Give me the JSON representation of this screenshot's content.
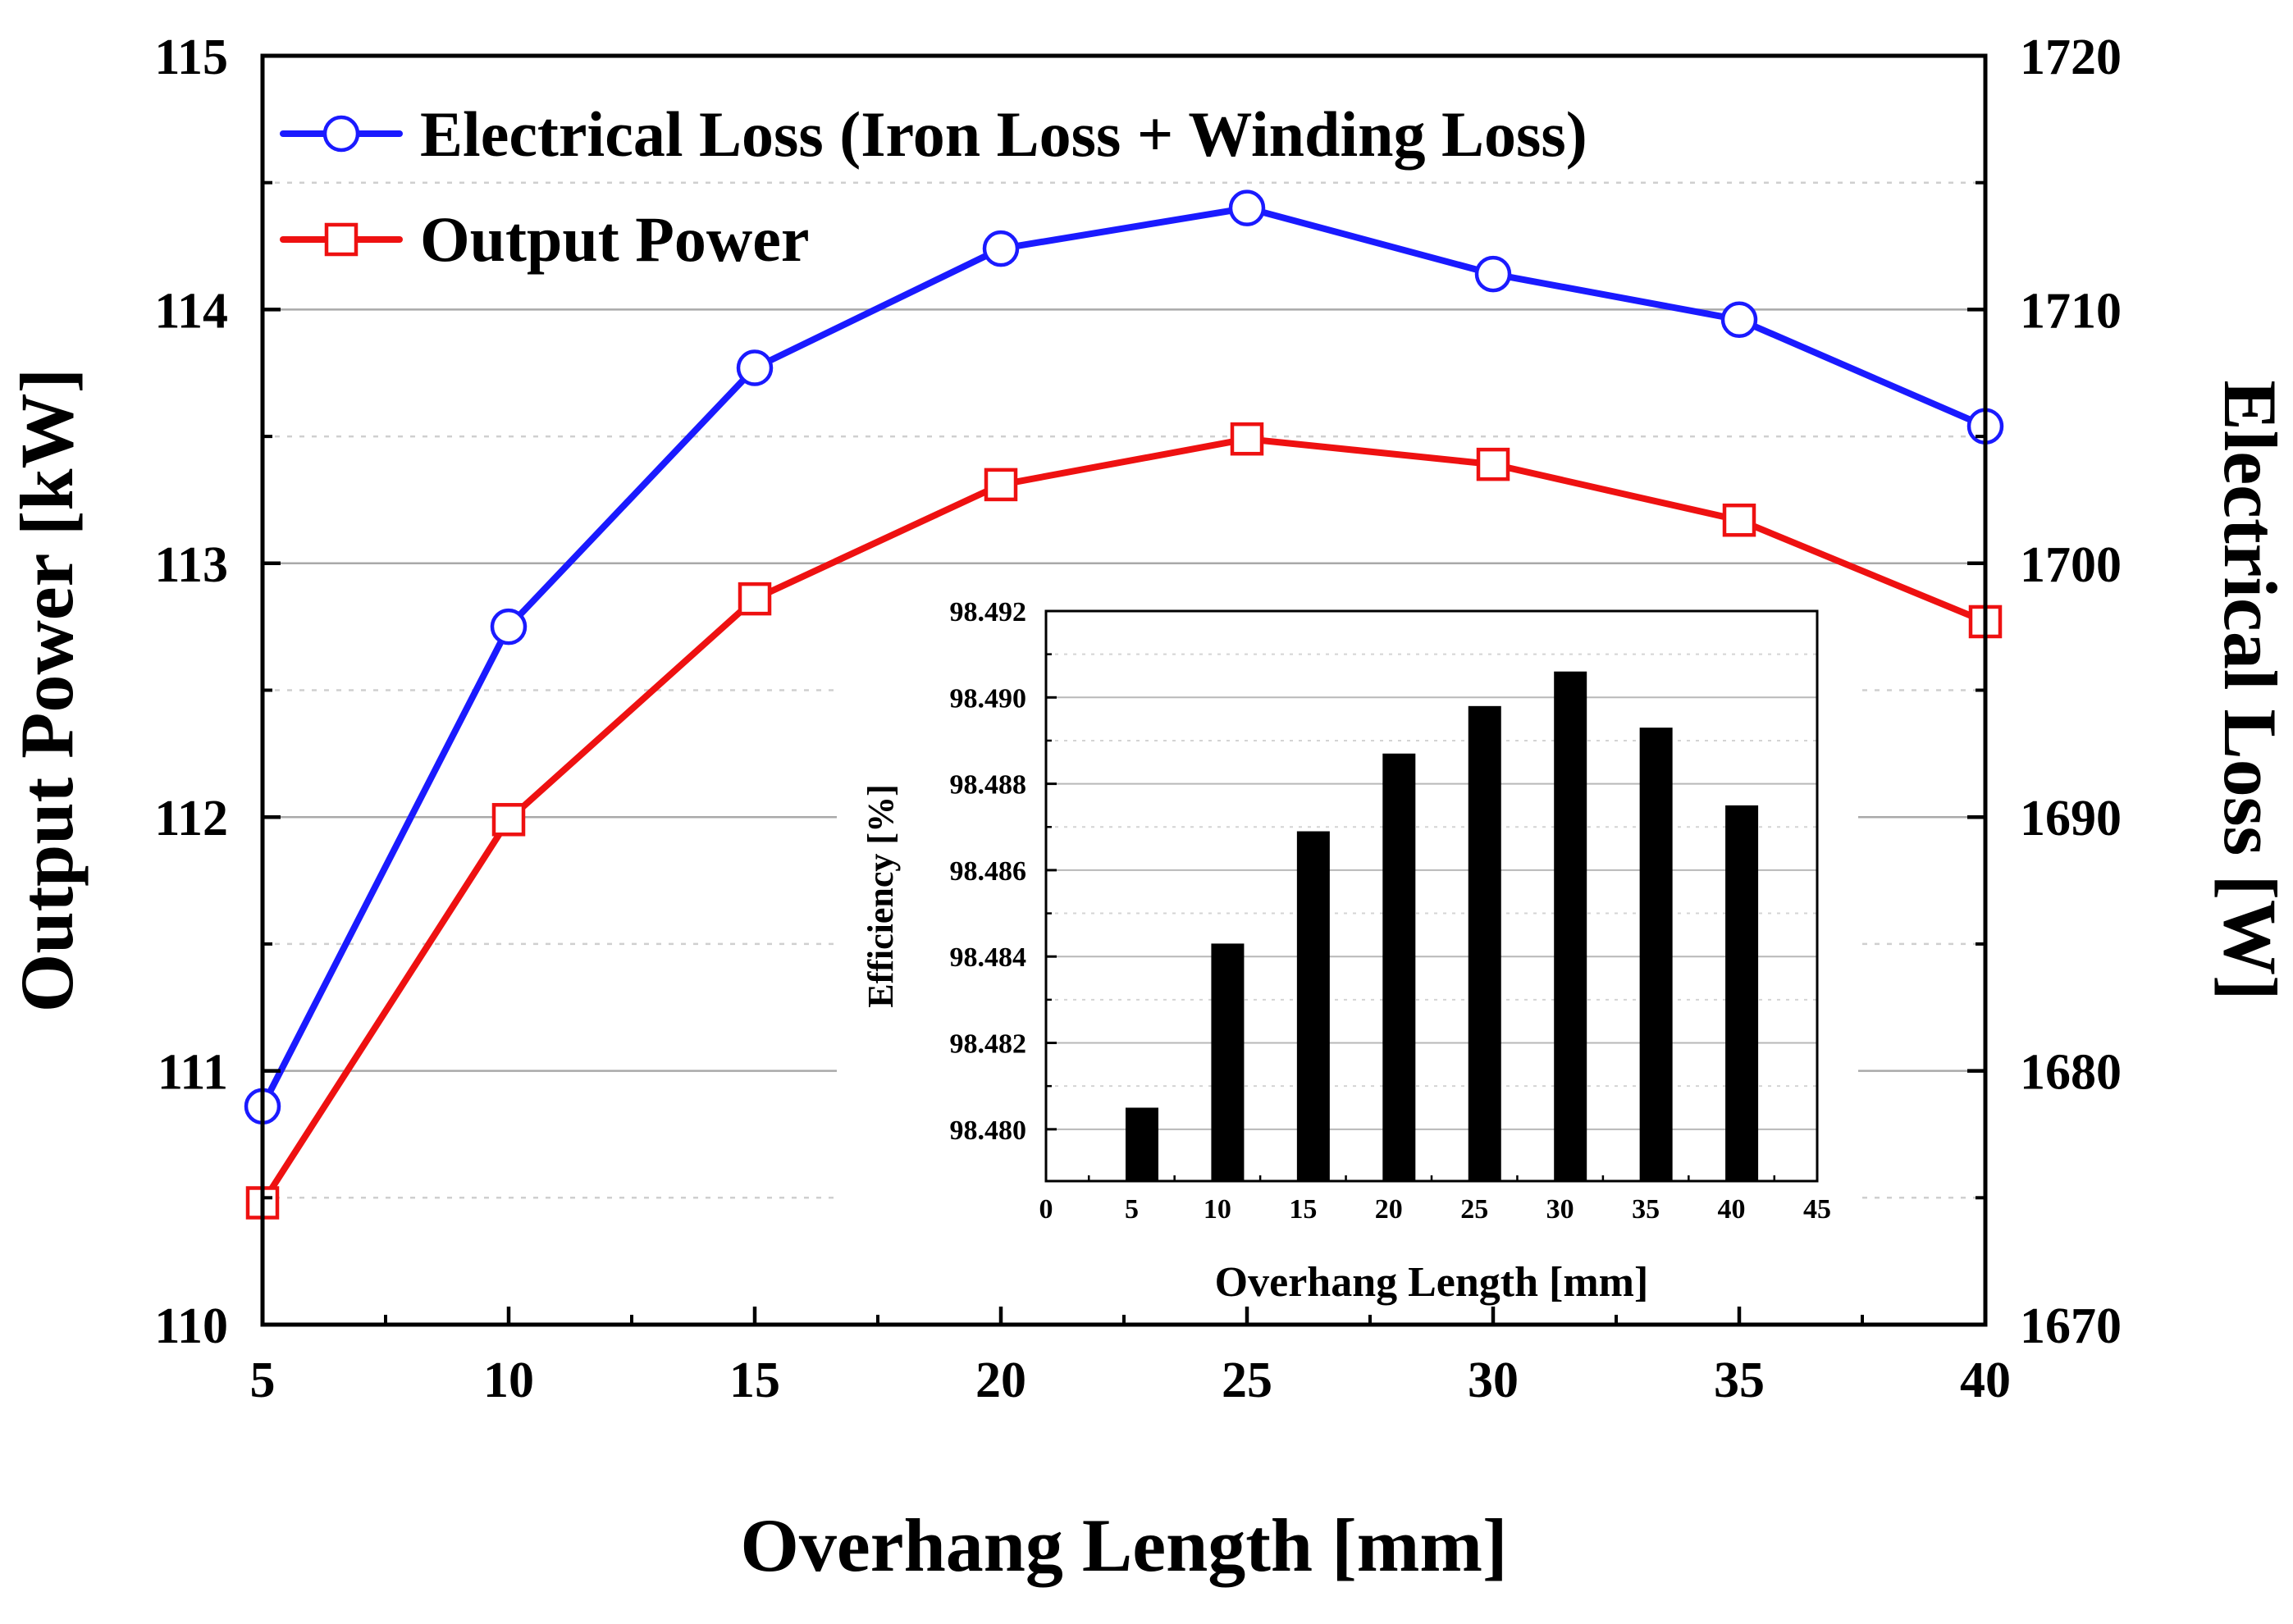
{
  "chart_data": [
    {
      "type": "line",
      "title": "",
      "xlabel": "Overhang Length [mm]",
      "ylabel": "Output Power [kW]",
      "y2label": "Electrical Loss [W]",
      "x": [
        5,
        10,
        15,
        20,
        25,
        30,
        35,
        40
      ],
      "xlim": [
        5,
        40
      ],
      "xticks": [
        "5",
        "10",
        "15",
        "20",
        "25",
        "30",
        "35",
        "40"
      ],
      "ylim": [
        110,
        115
      ],
      "yticks": [
        "110",
        "111",
        "112",
        "113",
        "114",
        "115"
      ],
      "y2lim": [
        1670,
        1720
      ],
      "y2ticks": [
        "1670",
        "1680",
        "1690",
        "1700",
        "1710",
        "1720"
      ],
      "grid": true,
      "legend_position": "top-left",
      "series": [
        {
          "name": "Electrical Loss (Iron Loss + Winding Loss)",
          "axis": "right",
          "marker": "circle",
          "color": "#1a1aff",
          "values": [
            1678.6,
            1697.5,
            1707.7,
            1712.4,
            1714.0,
            1711.4,
            1709.6,
            1705.4
          ]
        },
        {
          "name": "Output Power",
          "axis": "left",
          "marker": "square",
          "color": "#ee1111",
          "values": [
            110.48,
            111.99,
            112.86,
            113.31,
            113.49,
            113.39,
            113.17,
            112.77
          ]
        }
      ]
    },
    {
      "type": "bar",
      "title": "",
      "xlabel": "Overhang Length [mm]",
      "ylabel": "Efficiency [%]",
      "x": [
        5,
        10,
        15,
        20,
        25,
        30,
        35,
        40
      ],
      "values": [
        98.4805,
        98.4843,
        98.4869,
        98.4887,
        98.4898,
        98.4906,
        98.4893,
        98.4875
      ],
      "xlim": [
        0,
        45
      ],
      "xticks": [
        "0",
        "5",
        "10",
        "15",
        "20",
        "25",
        "30",
        "35",
        "40",
        "45"
      ],
      "ylim": [
        98.4788,
        98.492
      ],
      "yticks": [
        "98.480",
        "98.482",
        "98.484",
        "98.486",
        "98.488",
        "98.490",
        "98.492"
      ],
      "bar_color": "#000000",
      "grid": true
    }
  ]
}
